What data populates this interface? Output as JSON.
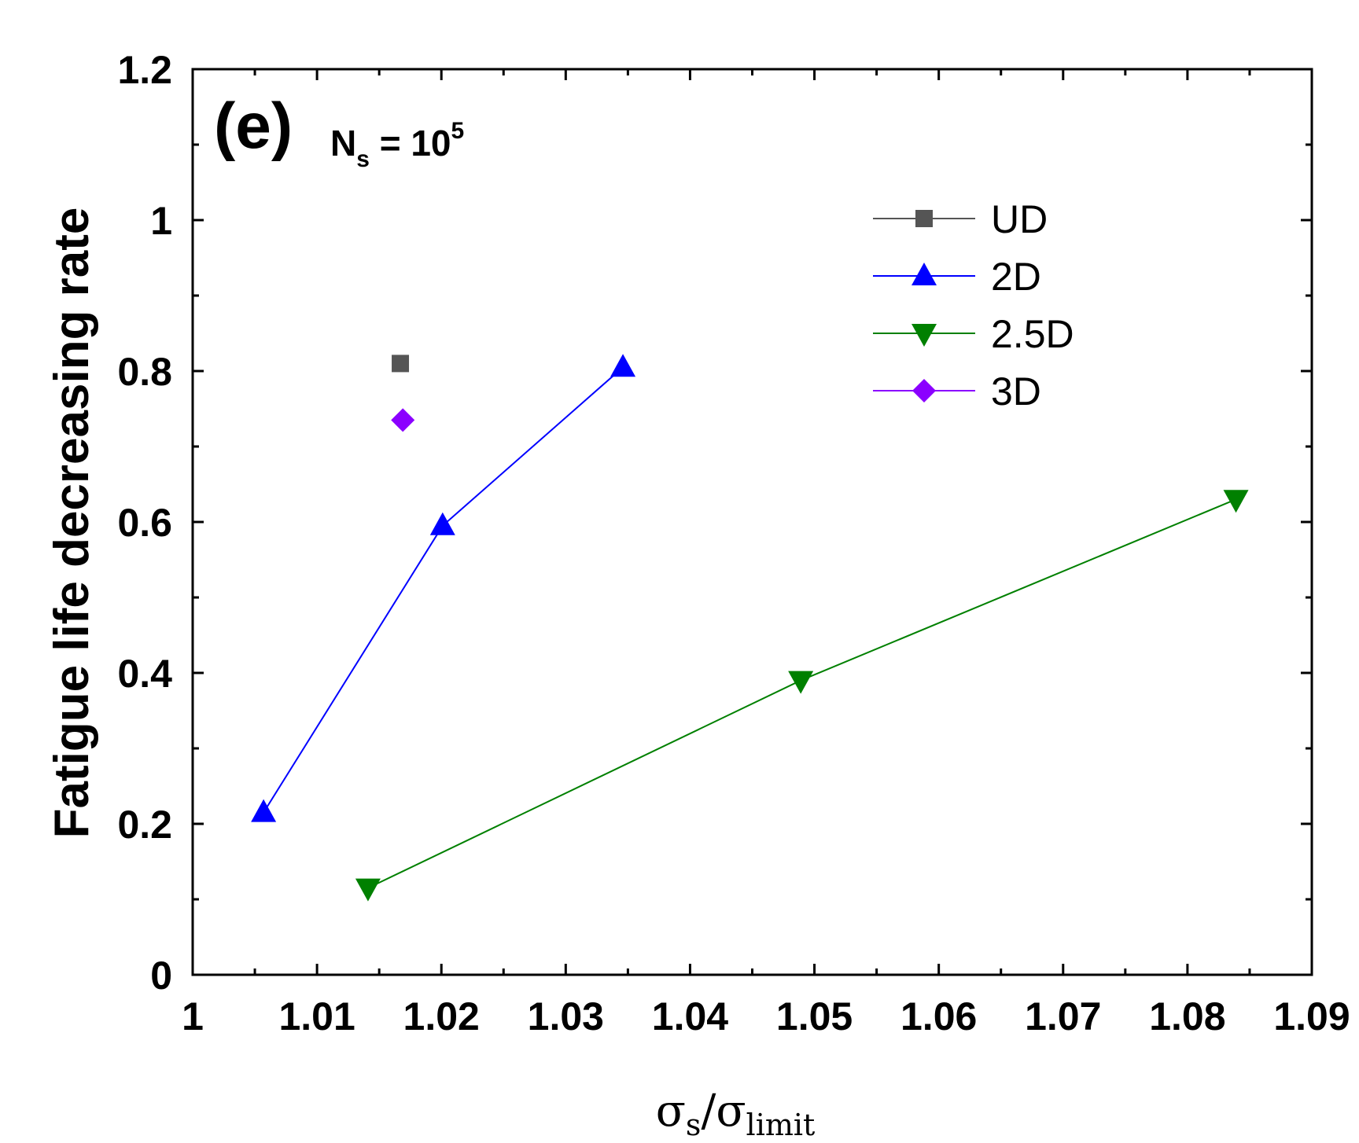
{
  "chart_data": {
    "type": "line",
    "panel_label": "(e)",
    "annotation": {
      "base": "N",
      "sub": "s",
      "text": " = 10",
      "sup": "5"
    },
    "xlabel": {
      "sym": "σ",
      "sub1": "s",
      "slash": "/",
      "sub2": "limit"
    },
    "ylabel": "Fatigue life decreasing rate",
    "xlim": [
      1.0,
      1.09
    ],
    "ylim": [
      0,
      1.2
    ],
    "xticks": [
      "1",
      "1.01",
      "1.02",
      "1.03",
      "1.04",
      "1.05",
      "1.06",
      "1.07",
      "1.08",
      "1.09"
    ],
    "yticks": [
      "0",
      "0.2",
      "0.4",
      "0.6",
      "0.8",
      "1",
      "1.2"
    ],
    "legend_position": "top-right",
    "series": [
      {
        "name": "UD",
        "color": "#555555",
        "marker": "square",
        "x": [
          1.0167
        ],
        "y": [
          0.81
        ]
      },
      {
        "name": "2D",
        "color": "#0000ff",
        "marker": "triangle-up",
        "x": [
          1.0057,
          1.0201,
          1.0346
        ],
        "y": [
          0.215,
          0.595,
          0.805
        ]
      },
      {
        "name": "2.5D",
        "color": "#008000",
        "marker": "triangle-down",
        "x": [
          1.0141,
          1.0489,
          1.0839
        ],
        "y": [
          0.115,
          0.39,
          0.63
        ]
      },
      {
        "name": "3D",
        "color": "#8b00ff",
        "marker": "diamond",
        "x": [
          1.0169
        ],
        "y": [
          0.735
        ]
      }
    ]
  }
}
